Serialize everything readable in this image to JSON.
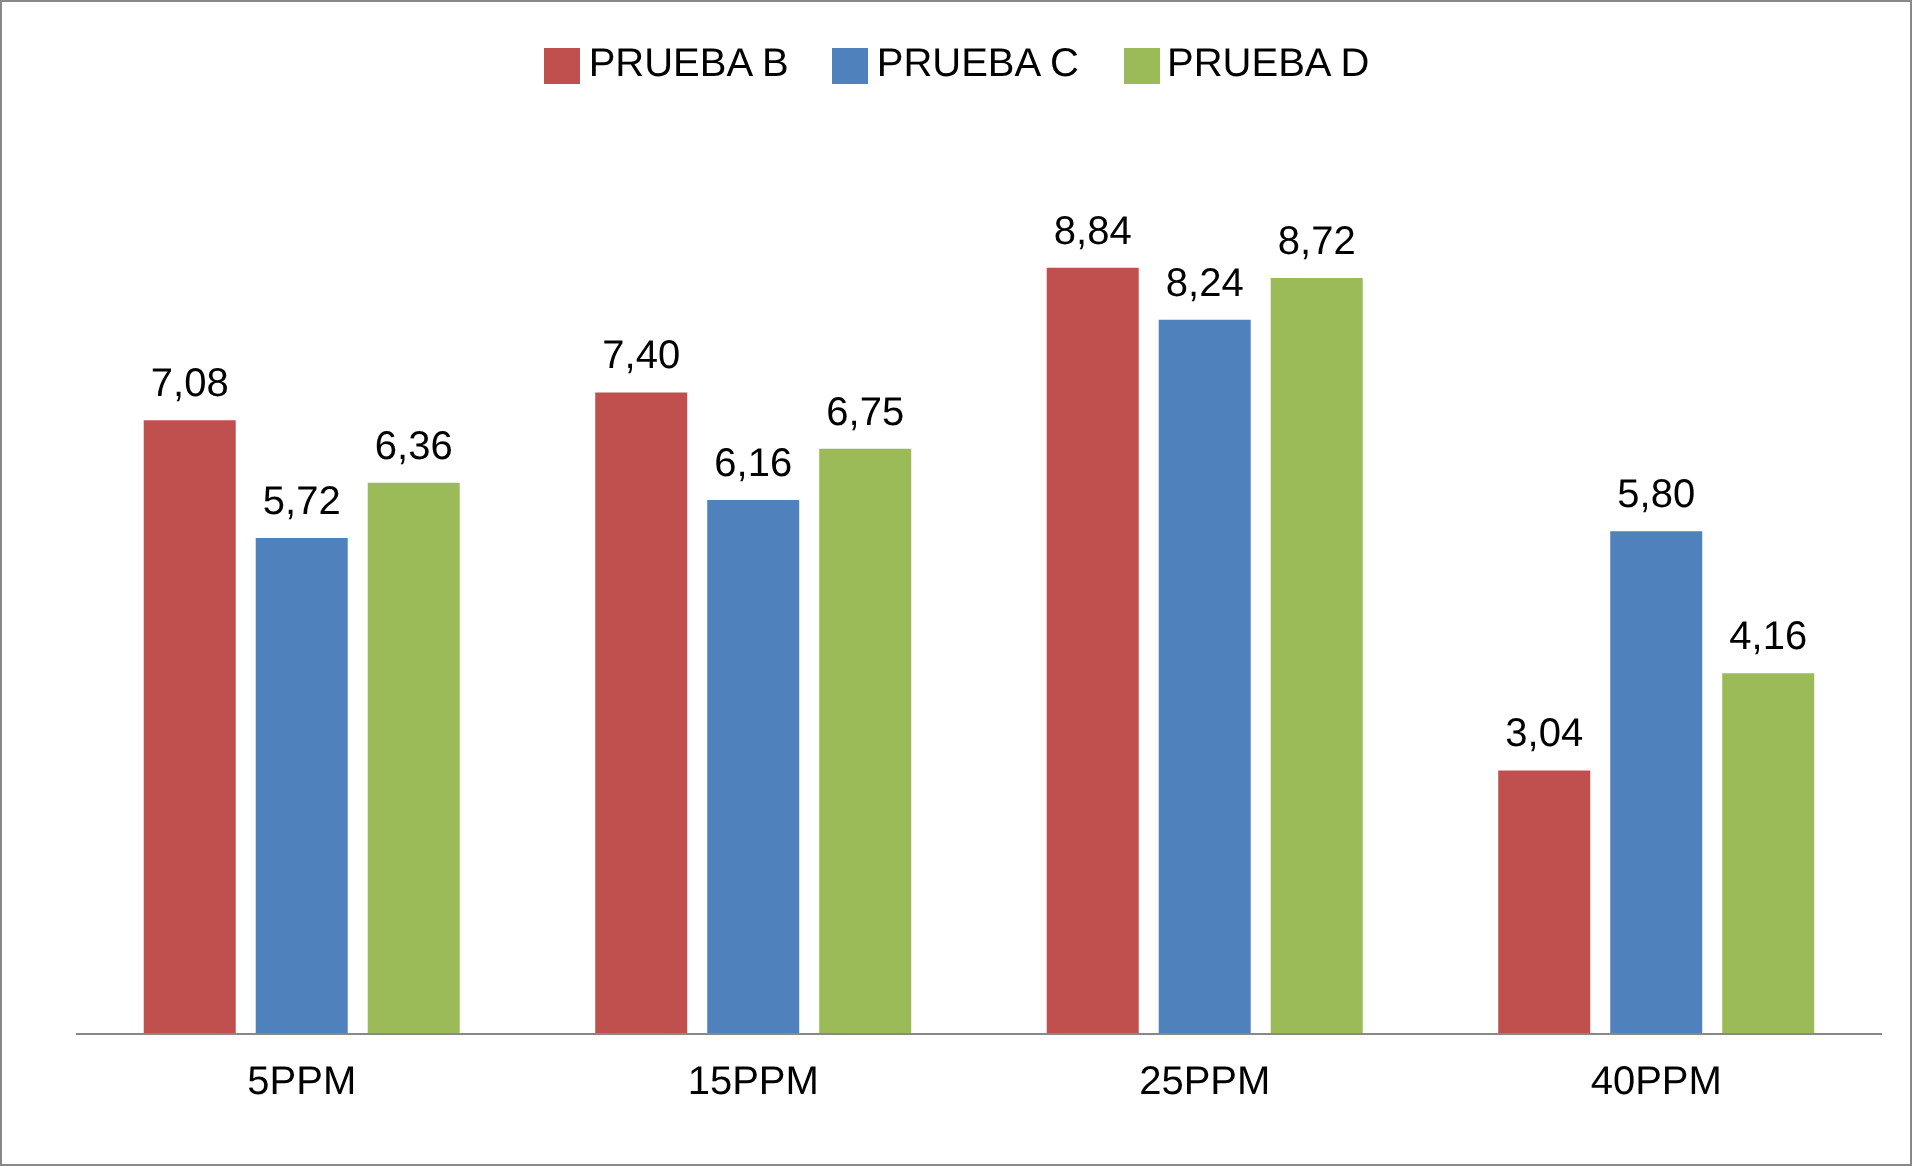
{
  "chart_data": {
    "type": "bar",
    "categories": [
      "5PPM",
      "15PPM",
      "25PPM",
      "40PPM"
    ],
    "series": [
      {
        "name": "PRUEBA B",
        "color": "#c0504d",
        "values": [
          7.08,
          7.4,
          8.84,
          3.04
        ],
        "value_labels": [
          "7,08",
          "7,40",
          "8,84",
          "3,04"
        ]
      },
      {
        "name": "PRUEBA C",
        "color": "#4f81bd",
        "values": [
          5.72,
          6.16,
          8.24,
          5.8
        ],
        "value_labels": [
          "5,72",
          "6,16",
          "8,24",
          "5,80"
        ]
      },
      {
        "name": "PRUEBA D",
        "color": "#9bbb59",
        "values": [
          6.36,
          6.75,
          8.72,
          4.16
        ],
        "value_labels": [
          "6,36",
          "6,75",
          "8,72",
          "4,16"
        ]
      }
    ],
    "legend": "top",
    "grid": false
  }
}
